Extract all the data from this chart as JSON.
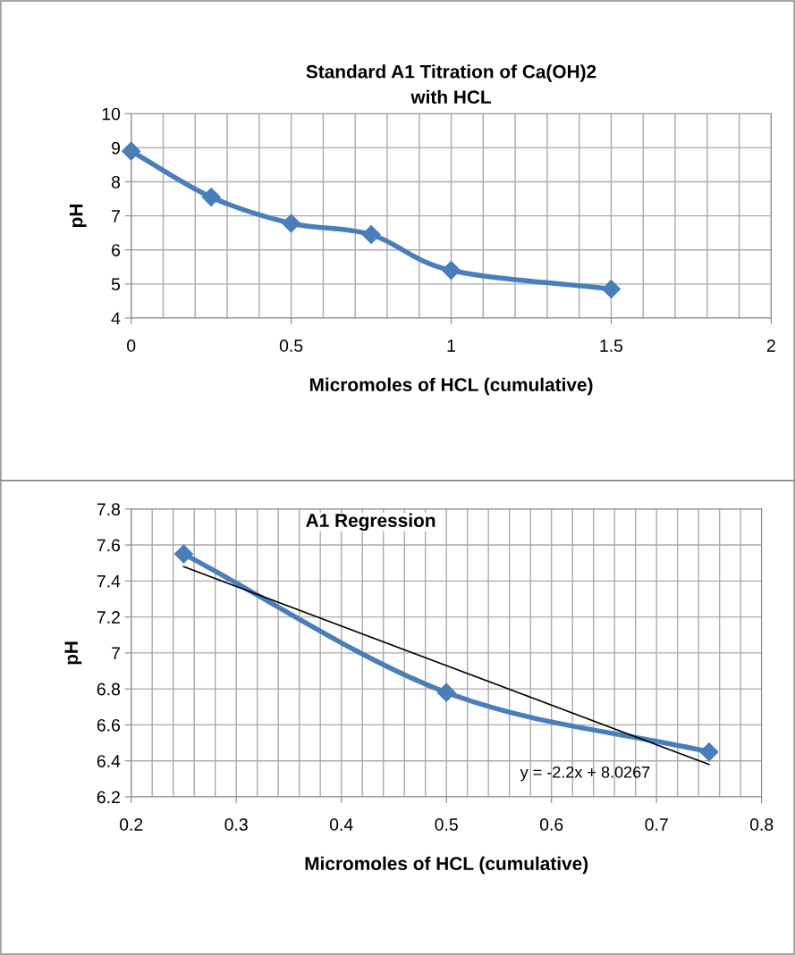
{
  "chart_data": [
    {
      "type": "line",
      "title": "Standard A1 Titration of Ca(OH)2\nwith HCL",
      "xlabel": "Micromoles of HCL (cumulative)",
      "ylabel": "pH",
      "x": [
        0,
        0.25,
        0.5,
        0.75,
        1,
        1.5
      ],
      "series": [
        {
          "color": "#4a7ebb",
          "values": [
            8.9,
            7.55,
            6.78,
            6.45,
            5.4,
            4.85
          ]
        }
      ],
      "xlim": [
        0,
        2
      ],
      "xticks": [
        0,
        0.5,
        1,
        1.5,
        2
      ],
      "ylim": [
        4,
        10
      ],
      "yticks": [
        4,
        5,
        6,
        7,
        8,
        9,
        10
      ],
      "grid": true,
      "marker": "diamond",
      "line_style": "solid"
    },
    {
      "type": "line",
      "title": "A1 Regression",
      "xlabel": "Micromoles of HCL (cumulative)",
      "ylabel": "pH",
      "x": [
        0.25,
        0.5,
        0.75
      ],
      "series": [
        {
          "color": "#4a7ebb",
          "values": [
            7.55,
            6.78,
            6.45
          ]
        },
        {
          "type": "line",
          "color": "#000000",
          "x": [
            0.25,
            0.75
          ],
          "values": [
            7.48,
            6.38
          ],
          "marker": "none"
        }
      ],
      "annotations": [
        "y = -2.2x + 8.0267"
      ],
      "xlim": [
        0.2,
        0.8
      ],
      "xticks": [
        0.2,
        0.3,
        0.4,
        0.5,
        0.6,
        0.7,
        0.8
      ],
      "ylim": [
        6.2,
        7.8
      ],
      "yticks": [
        6.2,
        6.4,
        6.6,
        6.8,
        7,
        7.2,
        7.4,
        7.6,
        7.8
      ],
      "grid": true,
      "marker": "diamond",
      "line_style": "solid"
    }
  ]
}
